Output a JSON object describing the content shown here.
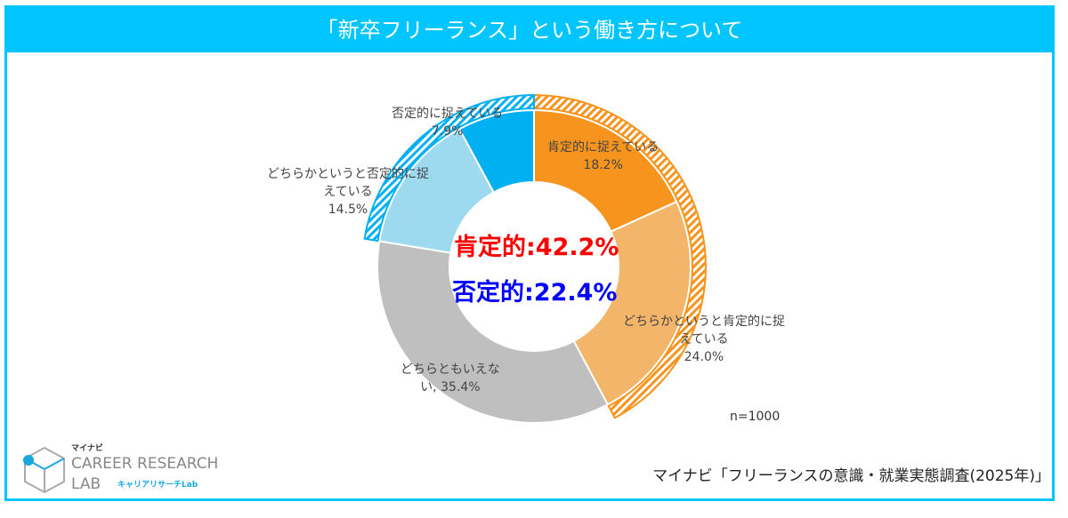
{
  "title": "「新卒フリーランス」という働き方について",
  "chart_data": {
    "type": "pie",
    "subtype": "donut",
    "title": "「新卒フリーランス」という働き方について",
    "slices": [
      {
        "label": "肯定的に捉えている",
        "value": 18.2,
        "value_label": "18.2%",
        "color": "#f7941d"
      },
      {
        "label_lines": [
          "どちらかというと肯定的に捉",
          "えている"
        ],
        "value": 24.0,
        "value_label": "24.0%",
        "color": "#f3b56a"
      },
      {
        "label_lines": [
          "どちらともいえな",
          "い, 35.4%"
        ],
        "value": 35.4,
        "color": "#bfbfbf"
      },
      {
        "label_lines": [
          "どちらかというと否定的に捉",
          "えている"
        ],
        "value": 14.5,
        "value_label": "14.5%",
        "color": "#9ddaf0"
      },
      {
        "label": "否定的に捉えている",
        "value": 7.9,
        "value_label": "7.9%",
        "color": "#00b0f0"
      }
    ],
    "outer_ring": [
      {
        "name": "肯定的",
        "value": 42.2,
        "color": "#f7941d",
        "pattern": "hatched"
      },
      {
        "name": "否定的",
        "value": 22.4,
        "color": "#00b0f0",
        "pattern": "hatched"
      }
    ],
    "center_labels": [
      {
        "text": "肯定的:42.2%",
        "color": "#ff0000"
      },
      {
        "text": "否定的:22.4%",
        "color": "#0000ff"
      }
    ],
    "sample_size": "n=1000"
  },
  "source": "マイナビ「フリーランスの意識・就業実態調査(2025年)」",
  "logo": {
    "brand": "マイナビ",
    "line1": "CAREER RESEARCH",
    "line2": "LAB",
    "sub": "キャリアリサーチLab"
  }
}
